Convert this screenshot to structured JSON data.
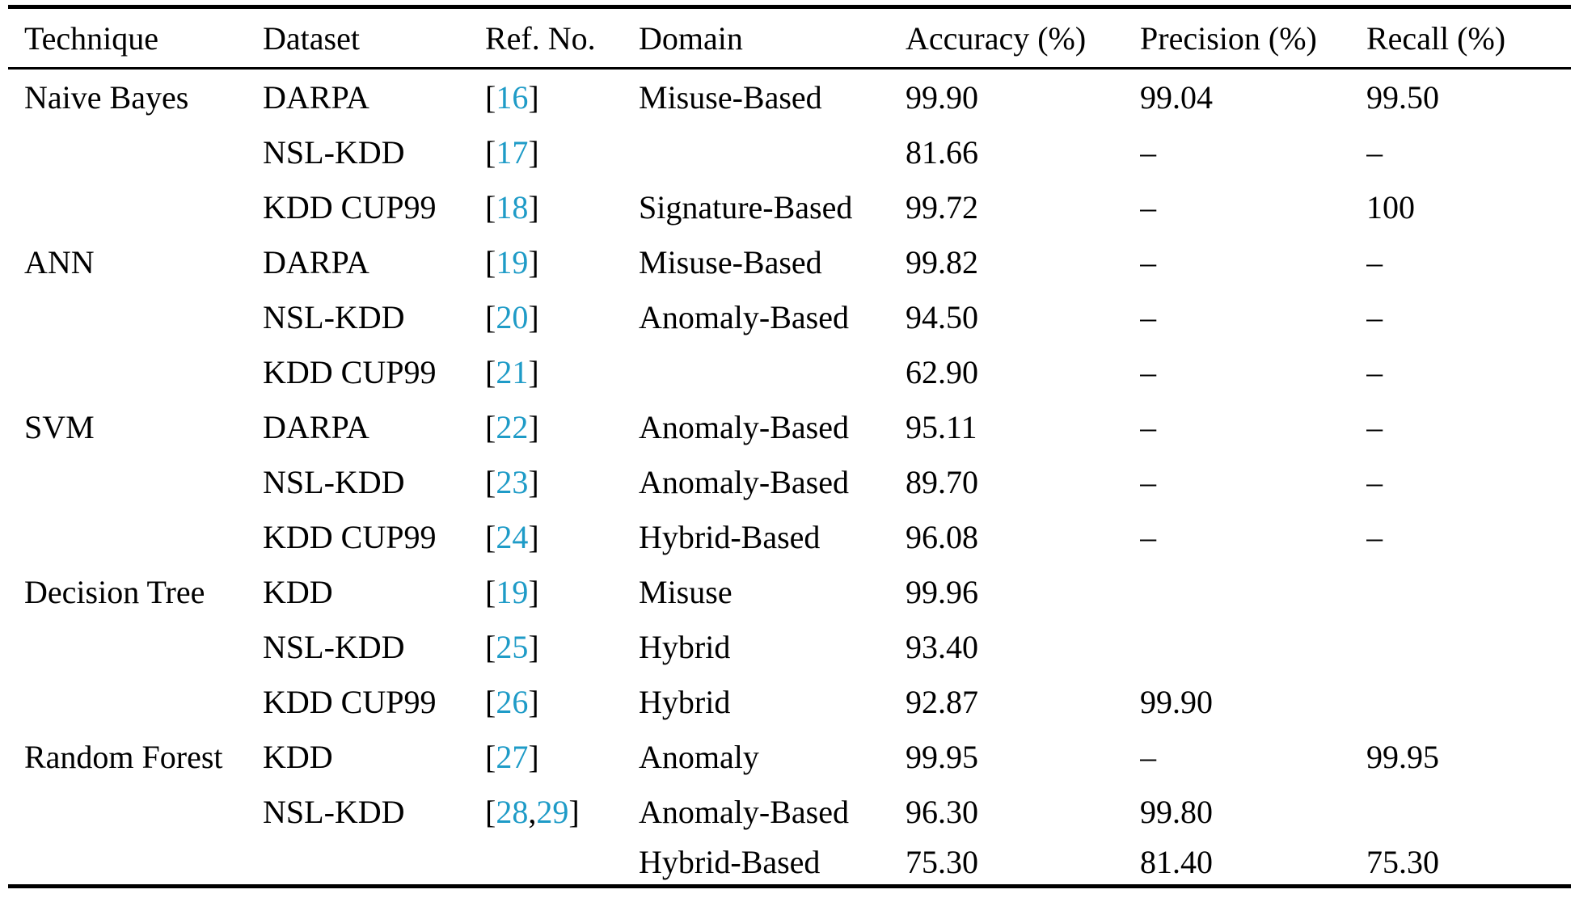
{
  "table": {
    "link_color": "#1e9bc7",
    "columns": {
      "technique": "Technique",
      "dataset": "Dataset",
      "ref": "Ref. No.",
      "domain": "Domain",
      "accuracy": "Accuracy (%)",
      "precision": "Precision (%)",
      "recall": "Recall (%)"
    },
    "rows": [
      {
        "technique": "Naive Bayes",
        "dataset": "DARPA",
        "refs": [
          "16"
        ],
        "domain": "Misuse-Based",
        "accuracy": "99.90",
        "precision": "99.04",
        "recall": "99.50"
      },
      {
        "technique": "",
        "dataset": "NSL-KDD",
        "refs": [
          "17"
        ],
        "domain": "",
        "accuracy": "81.66",
        "precision": "–",
        "recall": "–"
      },
      {
        "technique": "",
        "dataset": "KDD CUP99",
        "refs": [
          "18"
        ],
        "domain": "Signature-Based",
        "accuracy": "99.72",
        "precision": "–",
        "recall": "100"
      },
      {
        "technique": "ANN",
        "dataset": "DARPA",
        "refs": [
          "19"
        ],
        "domain": "Misuse-Based",
        "accuracy": "99.82",
        "precision": "–",
        "recall": "–"
      },
      {
        "technique": "",
        "dataset": "NSL-KDD",
        "refs": [
          "20"
        ],
        "domain": "Anomaly-Based",
        "accuracy": "94.50",
        "precision": "–",
        "recall": "–"
      },
      {
        "technique": "",
        "dataset": "KDD CUP99",
        "refs": [
          "21"
        ],
        "domain": "",
        "accuracy": "62.90",
        "precision": "–",
        "recall": "–"
      },
      {
        "technique": "SVM",
        "dataset": "DARPA",
        "refs": [
          "22"
        ],
        "domain": "Anomaly-Based",
        "accuracy": "95.11",
        "precision": "–",
        "recall": "–"
      },
      {
        "technique": "",
        "dataset": "NSL-KDD",
        "refs": [
          "23"
        ],
        "domain": "Anomaly-Based",
        "accuracy": "89.70",
        "precision": "–",
        "recall": "–"
      },
      {
        "technique": "",
        "dataset": "KDD CUP99",
        "refs": [
          "24"
        ],
        "domain": "Hybrid-Based",
        "accuracy": "96.08",
        "precision": "–",
        "recall": "–"
      },
      {
        "technique": "Decision Tree",
        "dataset": "KDD",
        "refs": [
          "19"
        ],
        "domain": "Misuse",
        "accuracy": "99.96",
        "precision": "",
        "recall": ""
      },
      {
        "technique": "",
        "dataset": "NSL-KDD",
        "refs": [
          "25"
        ],
        "domain": "Hybrid",
        "accuracy": "93.40",
        "precision": "",
        "recall": ""
      },
      {
        "technique": "",
        "dataset": "KDD CUP99",
        "refs": [
          "26"
        ],
        "domain": "Hybrid",
        "accuracy": "92.87",
        "precision": "99.90",
        "recall": ""
      },
      {
        "technique": "Random Forest",
        "dataset": "KDD",
        "refs": [
          "27"
        ],
        "domain": "Anomaly",
        "accuracy": "99.95",
        "precision": "–",
        "recall": "99.95"
      },
      {
        "technique": "",
        "dataset": "NSL-KDD",
        "refs": [
          "28",
          "29"
        ],
        "domain": "Anomaly-Based",
        "accuracy": "96.30",
        "precision": "99.80",
        "recall": ""
      },
      {
        "technique": "",
        "dataset": "",
        "refs": [],
        "domain": "Hybrid-Based",
        "accuracy": "75.30",
        "precision": "81.40",
        "recall": "75.30"
      }
    ]
  }
}
